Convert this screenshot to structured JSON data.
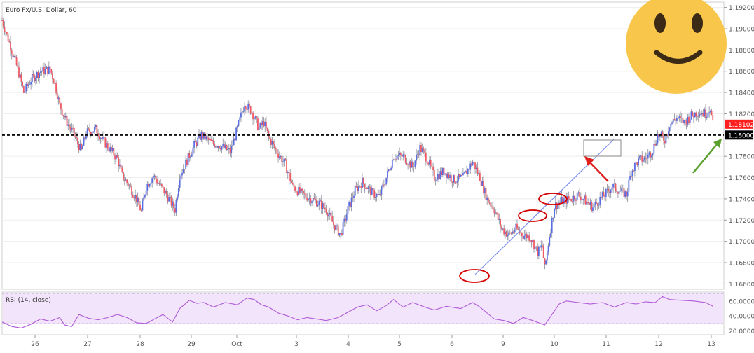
{
  "colors": {
    "up_candle": "#5b6ee1",
    "down_candle": "#f05a64",
    "wick": "#8a8a9a",
    "trendline": "#7b8ff0",
    "rsi_line": "#b05ad8",
    "rsi_band": "#f1e4fb",
    "price_badge": "#ff1f1f",
    "level_badge": "#000000",
    "red_arrow": "#e01e1e",
    "green_arrow": "#5aa02c",
    "ellipse": "#d40000",
    "smiley_face": "#f8c64a",
    "smiley_feature": "#3b2a16",
    "grid": "#eeeeee",
    "axis_text": "#555555"
  },
  "chart_data": [
    {
      "type": "candlestick",
      "title": "Euro Fx/U.S. Dollar, 60",
      "x_tick_labels": [
        "26",
        "27",
        "28",
        "29",
        "Oct",
        "3",
        "4",
        "5",
        "6",
        "9",
        "10",
        "11",
        "12",
        "13"
      ],
      "y_tick_labels": [
        "1.19200",
        "1.19000",
        "1.18800",
        "1.18600",
        "1.18400",
        "1.18200",
        "1.17800",
        "1.17600",
        "1.17400",
        "1.17200",
        "1.17000",
        "1.16800",
        "1.16600"
      ],
      "ylim": [
        1.1655,
        1.1925
      ],
      "last_price": "1.18102",
      "horizontal_level": "1.18000",
      "close_path": [
        [
          0,
          1.1908
        ],
        [
          8,
          1.188
        ],
        [
          14,
          1.1858
        ],
        [
          18,
          1.184
        ],
        [
          24,
          1.1852
        ],
        [
          32,
          1.186
        ],
        [
          40,
          1.1862
        ],
        [
          44,
          1.1848
        ],
        [
          48,
          1.1828
        ],
        [
          54,
          1.1812
        ],
        [
          60,
          1.18
        ],
        [
          66,
          1.1785
        ],
        [
          70,
          1.1802
        ],
        [
          78,
          1.1806
        ],
        [
          84,
          1.1795
        ],
        [
          90,
          1.1786
        ],
        [
          96,
          1.1778
        ],
        [
          100,
          1.1762
        ],
        [
          106,
          1.1752
        ],
        [
          112,
          1.174
        ],
        [
          116,
          1.1728
        ],
        [
          120,
          1.1752
        ],
        [
          126,
          1.1762
        ],
        [
          132,
          1.1752
        ],
        [
          138,
          1.1742
        ],
        [
          144,
          1.173
        ],
        [
          148,
          1.1762
        ],
        [
          154,
          1.1776
        ],
        [
          160,
          1.179
        ],
        [
          166,
          1.18
        ],
        [
          174,
          1.1793
        ],
        [
          182,
          1.179
        ],
        [
          190,
          1.1784
        ],
        [
          196,
          1.1806
        ],
        [
          202,
          1.183
        ],
        [
          208,
          1.1822
        ],
        [
          214,
          1.1806
        ],
        [
          218,
          1.1812
        ],
        [
          222,
          1.1798
        ],
        [
          228,
          1.1786
        ],
        [
          236,
          1.1772
        ],
        [
          242,
          1.1752
        ],
        [
          250,
          1.1744
        ],
        [
          258,
          1.174
        ],
        [
          264,
          1.1736
        ],
        [
          270,
          1.173
        ],
        [
          276,
          1.1716
        ],
        [
          282,
          1.1706
        ],
        [
          288,
          1.173
        ],
        [
          294,
          1.1748
        ],
        [
          300,
          1.1756
        ],
        [
          308,
          1.1746
        ],
        [
          314,
          1.1742
        ],
        [
          320,
          1.176
        ],
        [
          326,
          1.178
        ],
        [
          334,
          1.178
        ],
        [
          342,
          1.177
        ],
        [
          348,
          1.1788
        ],
        [
          354,
          1.1778
        ],
        [
          360,
          1.176
        ],
        [
          368,
          1.1766
        ],
        [
          376,
          1.1758
        ],
        [
          384,
          1.176
        ],
        [
          392,
          1.1775
        ],
        [
          398,
          1.176
        ],
        [
          404,
          1.174
        ],
        [
          410,
          1.173
        ],
        [
          416,
          1.1712
        ],
        [
          422,
          1.1706
        ],
        [
          428,
          1.1712
        ],
        [
          434,
          1.1706
        ],
        [
          440,
          1.1704
        ],
        [
          446,
          1.169
        ],
        [
          450,
          1.1696
        ],
        [
          452,
          1.1674
        ],
        [
          456,
          1.1706
        ],
        [
          460,
          1.1733
        ],
        [
          466,
          1.1738
        ],
        [
          474,
          1.174
        ],
        [
          480,
          1.1744
        ],
        [
          486,
          1.1738
        ],
        [
          492,
          1.1732
        ],
        [
          498,
          1.174
        ],
        [
          504,
          1.1746
        ],
        [
          508,
          1.1752
        ],
        [
          514,
          1.1748
        ],
        [
          520,
          1.1744
        ],
        [
          524,
          1.1766
        ],
        [
          530,
          1.1776
        ],
        [
          536,
          1.1778
        ],
        [
          542,
          1.1786
        ],
        [
          546,
          1.18
        ],
        [
          552,
          1.1796
        ],
        [
          556,
          1.181
        ],
        [
          562,
          1.1816
        ],
        [
          568,
          1.1812
        ],
        [
          574,
          1.1818
        ],
        [
          580,
          1.1822
        ],
        [
          586,
          1.182
        ],
        [
          590,
          1.1826
        ],
        [
          592,
          1.181
        ]
      ]
    },
    {
      "type": "line",
      "title": "RSI (14, close)",
      "y_tick_labels": [
        "60.0000",
        "40.0000",
        "20.0000"
      ],
      "ylim": [
        15,
        72
      ],
      "band": [
        30,
        70
      ],
      "values": [
        [
          0,
          32
        ],
        [
          8,
          26
        ],
        [
          16,
          24
        ],
        [
          24,
          29
        ],
        [
          32,
          36
        ],
        [
          40,
          33
        ],
        [
          48,
          38
        ],
        [
          52,
          28
        ],
        [
          58,
          26
        ],
        [
          64,
          42
        ],
        [
          72,
          37
        ],
        [
          80,
          35
        ],
        [
          88,
          38
        ],
        [
          96,
          42
        ],
        [
          104,
          38
        ],
        [
          112,
          31
        ],
        [
          120,
          30
        ],
        [
          128,
          37
        ],
        [
          134,
          42
        ],
        [
          142,
          32
        ],
        [
          148,
          50
        ],
        [
          156,
          61
        ],
        [
          162,
          57
        ],
        [
          168,
          58
        ],
        [
          176,
          52
        ],
        [
          186,
          58
        ],
        [
          196,
          55
        ],
        [
          204,
          64
        ],
        [
          210,
          62
        ],
        [
          216,
          55
        ],
        [
          222,
          52
        ],
        [
          230,
          44
        ],
        [
          238,
          40
        ],
        [
          246,
          35
        ],
        [
          254,
          38
        ],
        [
          262,
          36
        ],
        [
          270,
          34
        ],
        [
          280,
          38
        ],
        [
          288,
          45
        ],
        [
          296,
          52
        ],
        [
          304,
          55
        ],
        [
          312,
          47
        ],
        [
          320,
          54
        ],
        [
          326,
          62
        ],
        [
          334,
          52
        ],
        [
          342,
          58
        ],
        [
          352,
          52
        ],
        [
          360,
          48
        ],
        [
          370,
          53
        ],
        [
          382,
          50
        ],
        [
          392,
          58
        ],
        [
          398,
          52
        ],
        [
          404,
          44
        ],
        [
          410,
          36
        ],
        [
          418,
          34
        ],
        [
          426,
          30
        ],
        [
          434,
          38
        ],
        [
          442,
          34
        ],
        [
          452,
          28
        ],
        [
          458,
          42
        ],
        [
          464,
          56
        ],
        [
          470,
          60
        ],
        [
          480,
          58
        ],
        [
          490,
          56
        ],
        [
          500,
          58
        ],
        [
          510,
          52
        ],
        [
          520,
          58
        ],
        [
          528,
          56
        ],
        [
          536,
          59
        ],
        [
          544,
          58
        ],
        [
          550,
          66
        ],
        [
          556,
          62
        ],
        [
          566,
          61
        ],
        [
          576,
          60
        ],
        [
          586,
          58
        ],
        [
          592,
          53
        ]
      ]
    }
  ]
}
